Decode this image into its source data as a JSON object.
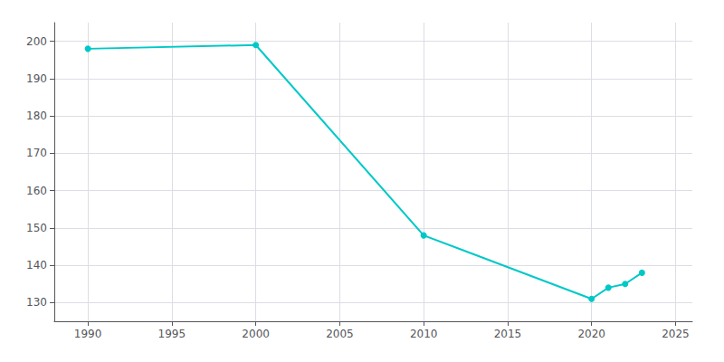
{
  "chart_data": {
    "type": "line",
    "x": [
      1990,
      2000,
      2010,
      2020,
      2021,
      2022,
      2023
    ],
    "values": [
      198,
      199,
      148,
      131,
      134,
      135,
      138
    ],
    "color": "#00c8c8",
    "marker": "circle",
    "xlim": [
      1988,
      2026
    ],
    "xticks": [
      1990,
      1995,
      2000,
      2005,
      2010,
      2015,
      2020,
      2025
    ],
    "ylim": [
      125,
      205
    ],
    "yticks": [
      130,
      140,
      150,
      160,
      170,
      180,
      190,
      200
    ],
    "grid": true
  }
}
